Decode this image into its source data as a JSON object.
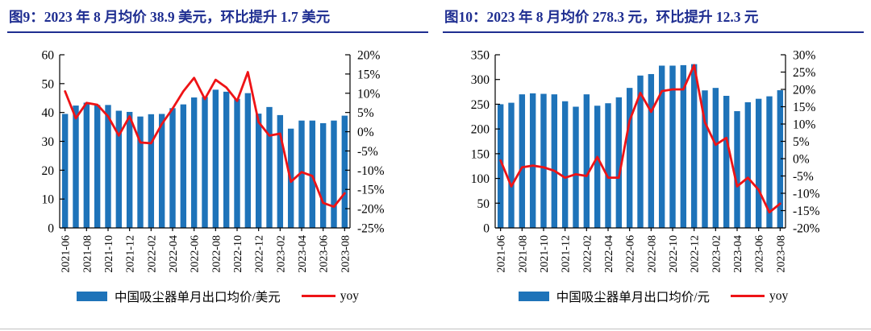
{
  "panels": [
    {
      "id": "figure-9"
    },
    {
      "id": "figure-10"
    }
  ],
  "chart_data": [
    {
      "type": "bar+line",
      "title": "图9：2023 年 8 月均价 38.9 美元，环比提升 1.7 美元",
      "categories": [
        "2021-06",
        "2021-07",
        "2021-08",
        "2021-09",
        "2021-10",
        "2021-11",
        "2021-12",
        "2022-01",
        "2022-02",
        "2022-03",
        "2022-04",
        "2022-05",
        "2022-06",
        "2022-07",
        "2022-08",
        "2022-09",
        "2022-10",
        "2022-11",
        "2022-12",
        "2023-01",
        "2023-02",
        "2023-03",
        "2023-04",
        "2023-05",
        "2023-06",
        "2023-07",
        "2023-08"
      ],
      "x_tick_label_every": 2,
      "series": [
        {
          "name": "中国吸尘器单月出口均价/美元",
          "type": "bar",
          "axis": "left",
          "color": "#1e73b9",
          "values": [
            39.5,
            42.4,
            43.4,
            42.6,
            42.6,
            40.6,
            40.2,
            38.6,
            39.4,
            39.5,
            41.5,
            42.8,
            45.2,
            45.4,
            47.9,
            47.2,
            44.7,
            46.7,
            39.6,
            41.9,
            39.1,
            34.4,
            37.2,
            37.2,
            36.3,
            37.2,
            38.9
          ]
        },
        {
          "name": "yoy",
          "type": "line",
          "axis": "right",
          "color": "#ee1316",
          "values": [
            10.5,
            3.5,
            7.5,
            7.0,
            4.0,
            -1.0,
            4.0,
            -2.8,
            -3.0,
            2.0,
            6.0,
            10.5,
            14.0,
            8.5,
            13.5,
            11.5,
            8.0,
            15.5,
            2.5,
            -1.0,
            -0.5,
            -13.0,
            -10.5,
            -11.5,
            -18.5,
            -19.5,
            -16.0
          ]
        }
      ],
      "left_axis": {
        "min": 0,
        "max": 60,
        "tick_values": [
          60,
          50,
          40,
          30,
          20,
          10,
          0
        ],
        "tick_labels": [
          "60",
          "50",
          "40",
          "30",
          "20",
          "10",
          "0"
        ]
      },
      "right_axis": {
        "min": -25,
        "max": 20,
        "tick_values": [
          20,
          15,
          10,
          5,
          0,
          -5,
          -10,
          -15,
          -20,
          -25
        ],
        "tick_labels": [
          "20%",
          "15%",
          "10%",
          "5%",
          "0%",
          "-5%",
          "-10%",
          "-15%",
          "-20%",
          "-25%"
        ]
      },
      "grid": "off",
      "legend_position": "bottom"
    },
    {
      "type": "bar+line",
      "title": "图10：2023 年 8 月均价 278.3 元，环比提升 12.3 元",
      "categories": [
        "2021-06",
        "2021-07",
        "2021-08",
        "2021-09",
        "2021-10",
        "2021-11",
        "2021-12",
        "2022-01",
        "2022-02",
        "2022-03",
        "2022-04",
        "2022-05",
        "2022-06",
        "2022-07",
        "2022-08",
        "2022-09",
        "2022-10",
        "2022-11",
        "2022-12",
        "2023-01",
        "2023-02",
        "2023-03",
        "2023-04",
        "2023-05",
        "2023-06",
        "2023-07",
        "2023-08"
      ],
      "x_tick_label_every": 2,
      "series": [
        {
          "name": "中国吸尘器单月出口均价/元",
          "type": "bar",
          "axis": "left",
          "color": "#1e73b9",
          "values": [
            250,
            253,
            270,
            272,
            271,
            270,
            256,
            245,
            270,
            247,
            252,
            264,
            283,
            308,
            311,
            328,
            328,
            329,
            331,
            278,
            283,
            267,
            236,
            254,
            261,
            266,
            278.3
          ]
        },
        {
          "name": "yoy",
          "type": "line",
          "axis": "right",
          "color": "#ee1316",
          "values": [
            -0.5,
            -8.0,
            -2.5,
            -2.0,
            -2.5,
            -3.5,
            -5.5,
            -4.5,
            -5.0,
            0.5,
            -5.5,
            -5.5,
            11.0,
            19.0,
            13.5,
            19.5,
            20.0,
            20.0,
            27.0,
            10.5,
            4.0,
            6.0,
            -8.0,
            -5.5,
            -9.0,
            -15.5,
            -13.0
          ]
        }
      ],
      "left_axis": {
        "min": 0,
        "max": 350,
        "tick_values": [
          350,
          300,
          250,
          200,
          150,
          100,
          50,
          0
        ],
        "tick_labels": [
          "350",
          "300",
          "250",
          "200",
          "150",
          "100",
          "50",
          "0"
        ]
      },
      "right_axis": {
        "min": -20,
        "max": 30,
        "tick_values": [
          30,
          25,
          20,
          15,
          10,
          5,
          0,
          -5,
          -10,
          -15,
          -20
        ],
        "tick_labels": [
          "30%",
          "25%",
          "20%",
          "15%",
          "10%",
          "5%",
          "0%",
          "-5%",
          "-10%",
          "-15%",
          "-20%"
        ]
      },
      "grid": "off",
      "legend_position": "bottom"
    }
  ]
}
